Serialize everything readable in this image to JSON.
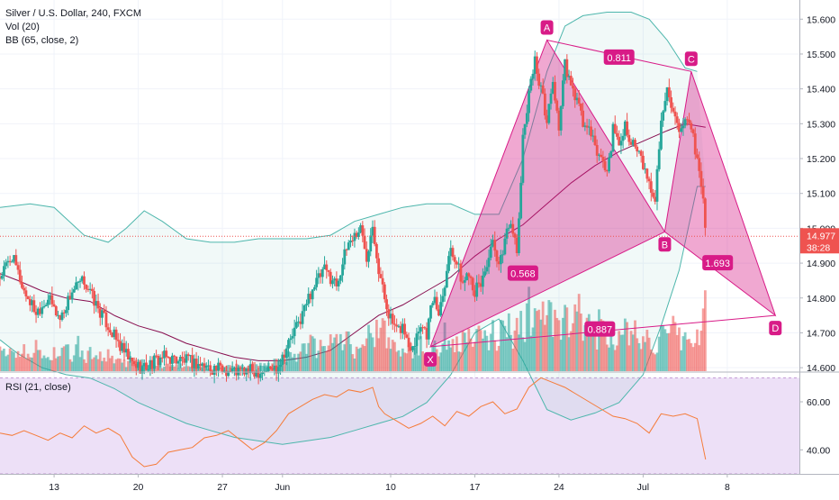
{
  "chart_data": {
    "type": "candlestick",
    "legend": {
      "symbol": "Silver / U.S. Dollar, 240, FXCM",
      "volume": "Vol (20)",
      "bb": "BB (65, close, 2)",
      "rsi": "RSI (21, close)"
    },
    "price_axis": {
      "ticks": [
        "15.600",
        "15.500",
        "15.400",
        "15.300",
        "15.200",
        "15.100",
        "15.000",
        "14.900",
        "14.800",
        "14.700",
        "14.600"
      ],
      "range": [
        14.59,
        15.655
      ]
    },
    "rsi_axis": {
      "ticks": [
        "60.00",
        "40.00"
      ],
      "range": [
        30,
        72
      ]
    },
    "time_axis": {
      "ticks": [
        {
          "label": "13",
          "day": 13
        },
        {
          "label": "20",
          "day": 20
        },
        {
          "label": "27",
          "day": 27
        },
        {
          "label": "Jun",
          "day": 32
        },
        {
          "label": "10",
          "day": 41
        },
        {
          "label": "17",
          "day": 48
        },
        {
          "label": "24",
          "day": 55
        },
        {
          "label": "Jul",
          "day": 62
        },
        {
          "label": "8",
          "day": 69
        }
      ],
      "day_range": [
        8.5,
        75
      ]
    },
    "last_price": {
      "value": 14.977,
      "label": "14.977",
      "countdown": "38:28"
    },
    "colors": {
      "up": "#26a69a",
      "down": "#ef5350",
      "pattern": "#d81b87",
      "bb": "#4db6ac",
      "rsi": "#f57c3a",
      "rsi_band": "#ede0f7"
    },
    "ohlc_anchors": [
      [
        8.5,
        14.86
      ],
      [
        9.5,
        14.92
      ],
      [
        10.5,
        14.82
      ],
      [
        11.5,
        14.76
      ],
      [
        12.5,
        14.8
      ],
      [
        13.5,
        14.74
      ],
      [
        14.5,
        14.82
      ],
      [
        15.5,
        14.85
      ],
      [
        16.5,
        14.78
      ],
      [
        17.5,
        14.72
      ],
      [
        18.5,
        14.66
      ],
      [
        19.5,
        14.61
      ],
      [
        20.5,
        14.6
      ],
      [
        22,
        14.63
      ],
      [
        24,
        14.62
      ],
      [
        26,
        14.6
      ],
      [
        28,
        14.59
      ],
      [
        30,
        14.59
      ],
      [
        31.5,
        14.6
      ],
      [
        32.5,
        14.67
      ],
      [
        33.5,
        14.74
      ],
      [
        34.5,
        14.83
      ],
      [
        35.5,
        14.88
      ],
      [
        36.5,
        14.84
      ],
      [
        37.5,
        14.96
      ],
      [
        38.5,
        15.0
      ],
      [
        39,
        14.92
      ],
      [
        39.5,
        15.02
      ],
      [
        40,
        14.88
      ],
      [
        40.5,
        14.8
      ],
      [
        41,
        14.74
      ],
      [
        41.5,
        14.7
      ],
      [
        42,
        14.72
      ],
      [
        42.5,
        14.66
      ],
      [
        43,
        14.68
      ],
      [
        43.5,
        14.73
      ],
      [
        44,
        14.7
      ],
      [
        44.5,
        14.8
      ],
      [
        45,
        14.76
      ],
      [
        45.5,
        14.85
      ],
      [
        46,
        14.95
      ],
      [
        46.5,
        14.9
      ],
      [
        47,
        14.84
      ],
      [
        47.5,
        14.88
      ],
      [
        48,
        14.82
      ],
      [
        48.5,
        14.84
      ],
      [
        49,
        14.9
      ],
      [
        49.5,
        14.95
      ],
      [
        50,
        14.88
      ],
      [
        50.5,
        14.97
      ],
      [
        51,
        15.03
      ],
      [
        51.5,
        14.92
      ],
      [
        52,
        15.25
      ],
      [
        52.5,
        15.4
      ],
      [
        53,
        15.48
      ],
      [
        53.5,
        15.4
      ],
      [
        54,
        15.31
      ],
      [
        54.5,
        15.42
      ],
      [
        55,
        15.29
      ],
      [
        55.5,
        15.47
      ],
      [
        56,
        15.4
      ],
      [
        56.5,
        15.37
      ],
      [
        57,
        15.3
      ],
      [
        57.5,
        15.28
      ],
      [
        58,
        15.23
      ],
      [
        58.5,
        15.2
      ],
      [
        59,
        15.16
      ],
      [
        59.5,
        15.28
      ],
      [
        60,
        15.24
      ],
      [
        60.5,
        15.3
      ],
      [
        61,
        15.25
      ],
      [
        61.5,
        15.22
      ],
      [
        62,
        15.18
      ],
      [
        62.5,
        15.12
      ],
      [
        63,
        15.09
      ],
      [
        63.5,
        15.3
      ],
      [
        64,
        15.42
      ],
      [
        64.5,
        15.33
      ],
      [
        65,
        15.26
      ],
      [
        65.5,
        15.3
      ],
      [
        66,
        15.28
      ],
      [
        66.5,
        15.2
      ],
      [
        67,
        15.08
      ],
      [
        67.2,
        14.98
      ]
    ],
    "volume_series": [
      [
        8.5,
        0.2
      ],
      [
        9,
        0.22
      ],
      [
        9.5,
        0.28
      ],
      [
        10,
        0.18
      ],
      [
        10.5,
        0.3
      ],
      [
        11,
        0.22
      ],
      [
        11.5,
        0.26
      ],
      [
        12,
        0.2
      ],
      [
        12.5,
        0.15
      ],
      [
        13,
        0.22
      ],
      [
        13.5,
        0.18
      ],
      [
        14,
        0.26
      ],
      [
        14.5,
        0.16
      ],
      [
        15,
        0.3
      ],
      [
        15.5,
        0.14
      ],
      [
        16,
        0.2
      ],
      [
        16.5,
        0.24
      ],
      [
        17,
        0.12
      ],
      [
        17.5,
        0.18
      ],
      [
        18,
        0.1
      ],
      [
        18.5,
        0.14
      ],
      [
        19,
        0.09
      ],
      [
        19.5,
        0.16
      ],
      [
        20,
        0.08
      ],
      [
        20.5,
        0.12
      ],
      [
        21,
        0.06
      ],
      [
        21.5,
        0.1
      ],
      [
        22,
        0.05
      ],
      [
        22.5,
        0.08
      ],
      [
        23,
        0.04
      ],
      [
        23.5,
        0.07
      ],
      [
        24,
        0.05
      ],
      [
        24.5,
        0.06
      ],
      [
        25,
        0.04
      ],
      [
        25.5,
        0.05
      ],
      [
        26,
        0.03
      ],
      [
        26.5,
        0.04
      ],
      [
        27,
        0.03
      ],
      [
        27.5,
        0.06
      ],
      [
        28,
        0.05
      ],
      [
        28.5,
        0.08
      ],
      [
        29,
        0.06
      ],
      [
        29.5,
        0.1
      ],
      [
        30,
        0.07
      ],
      [
        30.5,
        0.12
      ],
      [
        31,
        0.08
      ],
      [
        31.5,
        0.14
      ],
      [
        32,
        0.1
      ],
      [
        32.5,
        0.2
      ],
      [
        33,
        0.16
      ],
      [
        33.5,
        0.28
      ],
      [
        34,
        0.22
      ],
      [
        34.5,
        0.36
      ],
      [
        35,
        0.26
      ],
      [
        35.5,
        0.4
      ],
      [
        36,
        0.3
      ],
      [
        36.5,
        0.46
      ],
      [
        37,
        0.34
      ],
      [
        37.5,
        0.42
      ],
      [
        38,
        0.28
      ],
      [
        38.5,
        0.5
      ],
      [
        39,
        0.36
      ],
      [
        39.5,
        0.56
      ],
      [
        40,
        0.4
      ],
      [
        40.5,
        0.46
      ],
      [
        41,
        0.3
      ],
      [
        41.5,
        0.38
      ],
      [
        42,
        0.26
      ],
      [
        42.5,
        0.34
      ],
      [
        43,
        0.24
      ],
      [
        43.5,
        0.3
      ],
      [
        44,
        0.22
      ],
      [
        44.5,
        0.36
      ],
      [
        45,
        0.28
      ],
      [
        45.5,
        0.4
      ],
      [
        46,
        0.3
      ],
      [
        46.5,
        0.44
      ],
      [
        47,
        0.34
      ],
      [
        47.5,
        0.46
      ],
      [
        48,
        0.36
      ],
      [
        48.5,
        0.4
      ],
      [
        49,
        0.32
      ],
      [
        49.5,
        0.5
      ],
      [
        50,
        0.38
      ],
      [
        50.5,
        0.56
      ],
      [
        51,
        0.44
      ],
      [
        51.5,
        0.6
      ],
      [
        52,
        0.52
      ],
      [
        52.5,
        0.72
      ],
      [
        53,
        0.6
      ],
      [
        53.5,
        0.8
      ],
      [
        54,
        0.66
      ],
      [
        54.5,
        0.58
      ],
      [
        55,
        0.48
      ],
      [
        55.5,
        0.62
      ],
      [
        56,
        0.46
      ],
      [
        56.5,
        0.7
      ],
      [
        57,
        0.5
      ],
      [
        57.5,
        0.6
      ],
      [
        58,
        0.44
      ],
      [
        58.5,
        0.54
      ],
      [
        59,
        0.4
      ],
      [
        59.5,
        0.5
      ],
      [
        60,
        0.36
      ],
      [
        60.5,
        0.46
      ],
      [
        61,
        0.38
      ],
      [
        61.5,
        0.48
      ],
      [
        62,
        0.34
      ],
      [
        62.5,
        0.44
      ],
      [
        63,
        0.3
      ],
      [
        63.5,
        0.4
      ],
      [
        64,
        0.34
      ],
      [
        64.5,
        0.46
      ],
      [
        65,
        0.36
      ],
      [
        65.5,
        0.42
      ],
      [
        66,
        0.3
      ],
      [
        66.5,
        0.38
      ],
      [
        67,
        0.62
      ],
      [
        67.2,
        0.8
      ]
    ],
    "bb_upper": [
      [
        8.5,
        15.06
      ],
      [
        11,
        15.07
      ],
      [
        13,
        15.06
      ],
      [
        15.5,
        14.98
      ],
      [
        17.5,
        14.96
      ],
      [
        19,
        15.0
      ],
      [
        20.5,
        15.05
      ],
      [
        22,
        15.02
      ],
      [
        24,
        14.97
      ],
      [
        26,
        14.96
      ],
      [
        28,
        14.96
      ],
      [
        30,
        14.97
      ],
      [
        32,
        14.97
      ],
      [
        34,
        14.97
      ],
      [
        36,
        14.98
      ],
      [
        38,
        15.02
      ],
      [
        40,
        15.04
      ],
      [
        42,
        15.06
      ],
      [
        44,
        15.07
      ],
      [
        46,
        15.07
      ],
      [
        48,
        15.04
      ],
      [
        50,
        15.04
      ],
      [
        52,
        15.2
      ],
      [
        54,
        15.45
      ],
      [
        55.5,
        15.58
      ],
      [
        57,
        15.61
      ],
      [
        59,
        15.62
      ],
      [
        61,
        15.62
      ],
      [
        62.5,
        15.6
      ],
      [
        64,
        15.54
      ],
      [
        65.5,
        15.46
      ],
      [
        66.5,
        15.45
      ]
    ],
    "bb_basis": [
      [
        8.5,
        14.87
      ],
      [
        10,
        14.85
      ],
      [
        12,
        14.82
      ],
      [
        14,
        14.8
      ],
      [
        16,
        14.79
      ],
      [
        18,
        14.75
      ],
      [
        20,
        14.72
      ],
      [
        22,
        14.7
      ],
      [
        24,
        14.67
      ],
      [
        26,
        14.65
      ],
      [
        28,
        14.63
      ],
      [
        30,
        14.62
      ],
      [
        32,
        14.62
      ],
      [
        34,
        14.63
      ],
      [
        36,
        14.65
      ],
      [
        38,
        14.7
      ],
      [
        40,
        14.75
      ],
      [
        42,
        14.78
      ],
      [
        44,
        14.82
      ],
      [
        46,
        14.86
      ],
      [
        48,
        14.92
      ],
      [
        50,
        14.97
      ],
      [
        52,
        15.01
      ],
      [
        54,
        15.07
      ],
      [
        56,
        15.13
      ],
      [
        58,
        15.18
      ],
      [
        60,
        15.22
      ],
      [
        62,
        15.25
      ],
      [
        64,
        15.28
      ],
      [
        65.5,
        15.3
      ],
      [
        67.2,
        15.29
      ]
    ],
    "bb_lower": [
      [
        8.5,
        14.68
      ],
      [
        10,
        14.64
      ],
      [
        12,
        14.6
      ],
      [
        14,
        14.58
      ],
      [
        16,
        14.57
      ],
      [
        18,
        14.54
      ],
      [
        20,
        14.5
      ],
      [
        22,
        14.47
      ],
      [
        24,
        14.44
      ],
      [
        26,
        14.42
      ],
      [
        28,
        14.4
      ],
      [
        30,
        14.39
      ],
      [
        32,
        14.38
      ],
      [
        34,
        14.39
      ],
      [
        36,
        14.4
      ],
      [
        38,
        14.42
      ],
      [
        40,
        14.44
      ],
      [
        42,
        14.46
      ],
      [
        44,
        14.5
      ],
      [
        46,
        14.58
      ],
      [
        48,
        14.7
      ],
      [
        50,
        14.74
      ],
      [
        52,
        14.62
      ],
      [
        54,
        14.48
      ],
      [
        56,
        14.45
      ],
      [
        58,
        14.47
      ],
      [
        60,
        14.5
      ],
      [
        62,
        14.58
      ],
      [
        63.5,
        14.72
      ],
      [
        65,
        14.88
      ],
      [
        66.5,
        15.12
      ],
      [
        67.2,
        15.12
      ]
    ],
    "rsi_series": [
      [
        8.5,
        47
      ],
      [
        9.5,
        46
      ],
      [
        10.5,
        48
      ],
      [
        11.5,
        46
      ],
      [
        12.5,
        44
      ],
      [
        13.5,
        47
      ],
      [
        14.5,
        45
      ],
      [
        15.5,
        50
      ],
      [
        16.5,
        47
      ],
      [
        17.5,
        49
      ],
      [
        18.5,
        46
      ],
      [
        19.5,
        37
      ],
      [
        20.5,
        33
      ],
      [
        21.5,
        34
      ],
      [
        22.5,
        39
      ],
      [
        23.5,
        40
      ],
      [
        24.5,
        41
      ],
      [
        25.5,
        45
      ],
      [
        26.5,
        46
      ],
      [
        27.5,
        48
      ],
      [
        28.5,
        44
      ],
      [
        29.5,
        40
      ],
      [
        30.5,
        43
      ],
      [
        31.5,
        48
      ],
      [
        32.5,
        55
      ],
      [
        33.5,
        58
      ],
      [
        34.5,
        61
      ],
      [
        35.5,
        63
      ],
      [
        36.5,
        62
      ],
      [
        37.5,
        65
      ],
      [
        38.5,
        64
      ],
      [
        39.5,
        66
      ],
      [
        40,
        58
      ],
      [
        40.5,
        55
      ],
      [
        41.5,
        52
      ],
      [
        42.5,
        49
      ],
      [
        43.5,
        51
      ],
      [
        44.5,
        54
      ],
      [
        45.5,
        50
      ],
      [
        46.5,
        56
      ],
      [
        47.5,
        54
      ],
      [
        48.5,
        58
      ],
      [
        49.5,
        60
      ],
      [
        50.5,
        55
      ],
      [
        51.5,
        57
      ],
      [
        52.5,
        66
      ],
      [
        53.5,
        70
      ],
      [
        54.5,
        68
      ],
      [
        55.5,
        66
      ],
      [
        56.5,
        63
      ],
      [
        57.5,
        60
      ],
      [
        58.5,
        57
      ],
      [
        59.5,
        54
      ],
      [
        60.5,
        53
      ],
      [
        61.5,
        51
      ],
      [
        62.5,
        47
      ],
      [
        63.5,
        55
      ],
      [
        64.5,
        54
      ],
      [
        65.5,
        55
      ],
      [
        66.5,
        53
      ],
      [
        67.2,
        36
      ]
    ],
    "pattern": {
      "X": {
        "label": "X",
        "day": 44.3,
        "price": 14.66
      },
      "A": {
        "label": "A",
        "day": 54.0,
        "price": 15.54
      },
      "B": {
        "label": "B",
        "day": 63.8,
        "price": 14.99
      },
      "C": {
        "label": "C",
        "day": 66.0,
        "price": 15.45
      },
      "D": {
        "label": "D",
        "day": 73.0,
        "price": 14.75
      },
      "ratios": [
        {
          "label": "0.568",
          "day": 52.0,
          "price": 14.87
        },
        {
          "label": "0.811",
          "day": 60.0,
          "price": 15.49
        },
        {
          "label": "1.693",
          "day": 68.2,
          "price": 14.9
        },
        {
          "label": "0.887",
          "day": 58.4,
          "price": 14.71
        }
      ]
    }
  }
}
